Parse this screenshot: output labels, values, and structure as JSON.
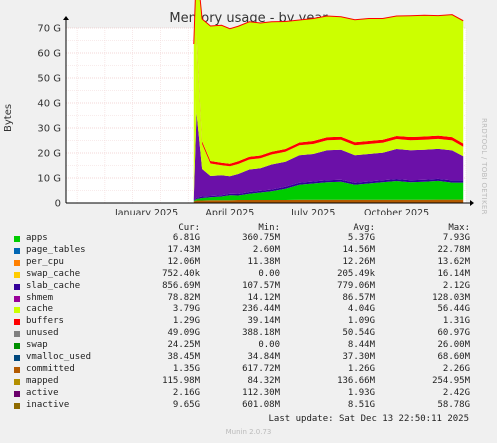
{
  "title": "Memory usage - by year",
  "side_credit": "RRDTOOL / TOBI OETIKER",
  "last_update": "Last update: Sat Dec 13 22:50:11 2025",
  "footer": "Munin 2.0.73",
  "legend_headers": {
    "cur": "Cur:",
    "min": "Min:",
    "avg": "Avg:",
    "max": "Max:"
  },
  "legend": [
    {
      "name": "apps",
      "color": "#00cc00",
      "cur": "6.81G",
      "min": "360.75M",
      "avg": "5.37G",
      "max": "7.93G"
    },
    {
      "name": "page_tables",
      "color": "#0066b3",
      "cur": "17.43M",
      "min": "2.60M",
      "avg": "14.56M",
      "max": "22.78M"
    },
    {
      "name": "per_cpu",
      "color": "#ff8000",
      "cur": "12.06M",
      "min": "11.38M",
      "avg": "12.26M",
      "max": "13.62M"
    },
    {
      "name": "swap_cache",
      "color": "#ffcc00",
      "cur": "752.40k",
      "min": "0.00",
      "avg": "205.49k",
      "max": "16.14M"
    },
    {
      "name": "slab_cache",
      "color": "#330099",
      "cur": "856.69M",
      "min": "107.57M",
      "avg": "779.06M",
      "max": "2.12G"
    },
    {
      "name": "shmem",
      "color": "#990099",
      "cur": "78.82M",
      "min": "14.12M",
      "avg": "86.57M",
      "max": "128.03M"
    },
    {
      "name": "cache",
      "color": "#ccff00",
      "cur": "3.79G",
      "min": "236.44M",
      "avg": "4.04G",
      "max": "56.44G"
    },
    {
      "name": "buffers",
      "color": "#ff0000",
      "cur": "1.29G",
      "min": "39.14M",
      "avg": "1.09G",
      "max": "1.31G"
    },
    {
      "name": "unused",
      "color": "#808080",
      "cur": "49.09G",
      "min": "388.18M",
      "avg": "50.54G",
      "max": "60.97G"
    },
    {
      "name": "swap",
      "color": "#008f00",
      "cur": "24.25M",
      "min": "0.00",
      "avg": "8.44M",
      "max": "26.00M"
    },
    {
      "name": "vmalloc_used",
      "color": "#00487d",
      "cur": "38.45M",
      "min": "34.84M",
      "avg": "37.30M",
      "max": "68.60M"
    },
    {
      "name": "committed",
      "color": "#b35a00",
      "cur": "1.35G",
      "min": "617.72M",
      "avg": "1.26G",
      "max": "2.26G"
    },
    {
      "name": "mapped",
      "color": "#b38f00",
      "cur": "115.98M",
      "min": "84.32M",
      "avg": "136.66M",
      "max": "254.95M"
    },
    {
      "name": "active",
      "color": "#6b006b",
      "cur": "2.16G",
      "min": "112.30M",
      "avg": "1.93G",
      "max": "2.42G"
    },
    {
      "name": "inactive",
      "color": "#8f6b00",
      "cur": "9.65G",
      "min": "601.08M",
      "avg": "8.51G",
      "max": "58.78G"
    }
  ],
  "chart_data": {
    "type": "area",
    "title": "Memory usage - by year",
    "ylabel": "Bytes",
    "xlabel": "",
    "y_ticks": [
      "0",
      "10 G",
      "20 G",
      "30 G",
      "40 G",
      "50 G",
      "60 G",
      "70 G"
    ],
    "ylim": [
      0,
      70
    ],
    "y_unit": "G",
    "x_ticks": [
      "January 2025",
      "April 2025",
      "July 2025",
      "October 2025"
    ],
    "grid": true,
    "x_months": [
      -2.4,
      12.0
    ],
    "series_by_month": {
      "x": [
        2.2,
        2.3,
        2.5,
        2.8,
        3.2,
        3.5,
        3.8,
        4.2,
        4.6,
        5.0,
        5.5,
        6.0,
        6.5,
        7.0,
        7.5,
        8.0,
        8.5,
        9.0,
        9.5,
        10.0,
        10.5,
        11.0,
        11.5,
        11.9
      ],
      "apps": [
        0.3,
        0.6,
        1.0,
        1.2,
        1.5,
        2.0,
        1.8,
        2.5,
        3.0,
        3.5,
        4.5,
        6.0,
        6.5,
        7.0,
        7.2,
        6.0,
        6.5,
        7.0,
        7.5,
        7.0,
        7.2,
        7.5,
        6.8,
        6.8
      ],
      "slab_cache": [
        0.1,
        0.5,
        0.6,
        0.5,
        0.5,
        0.6,
        0.6,
        0.7,
        0.7,
        0.7,
        0.8,
        0.8,
        0.8,
        0.8,
        0.8,
        0.8,
        0.8,
        0.8,
        0.8,
        0.8,
        0.8,
        0.8,
        0.9,
        0.9
      ],
      "cache": [
        0.2,
        30,
        10,
        5,
        4,
        4,
        4,
        4,
        4,
        4,
        4,
        4,
        4,
        4,
        4,
        4,
        4,
        4,
        4,
        4,
        4,
        4,
        4,
        3.8
      ],
      "buffers": [
        0.1,
        1.0,
        1.0,
        1.0,
        1.0,
        1.0,
        1.1,
        1.1,
        1.1,
        1.1,
        1.1,
        1.1,
        1.2,
        1.2,
        1.2,
        1.2,
        1.2,
        1.2,
        1.2,
        1.3,
        1.3,
        1.3,
        1.3,
        1.3
      ],
      "unused": [
        61.7,
        29.0,
        49.0,
        54.0,
        55.0,
        54.0,
        54.0,
        54.0,
        53.0,
        52.0,
        51.0,
        49.0,
        49.0,
        48.5,
        48.0,
        49.0,
        49.0,
        48.5,
        48.0,
        48.5,
        48.5,
        48.0,
        49.0,
        49.1
      ],
      "inactive": [
        0.6,
        34,
        11,
        8,
        8,
        7,
        8,
        9,
        9,
        10,
        10,
        11,
        11,
        12,
        12,
        11,
        11,
        11,
        12,
        12,
        12,
        12,
        12,
        9.65
      ],
      "committed": [
        0.6,
        1.0,
        1.0,
        1.1,
        1.1,
        1.1,
        1.2,
        1.2,
        1.2,
        1.2,
        1.2,
        1.3,
        1.3,
        1.3,
        1.3,
        1.3,
        1.3,
        1.3,
        1.3,
        1.3,
        1.3,
        1.35,
        1.35,
        1.35
      ]
    }
  }
}
